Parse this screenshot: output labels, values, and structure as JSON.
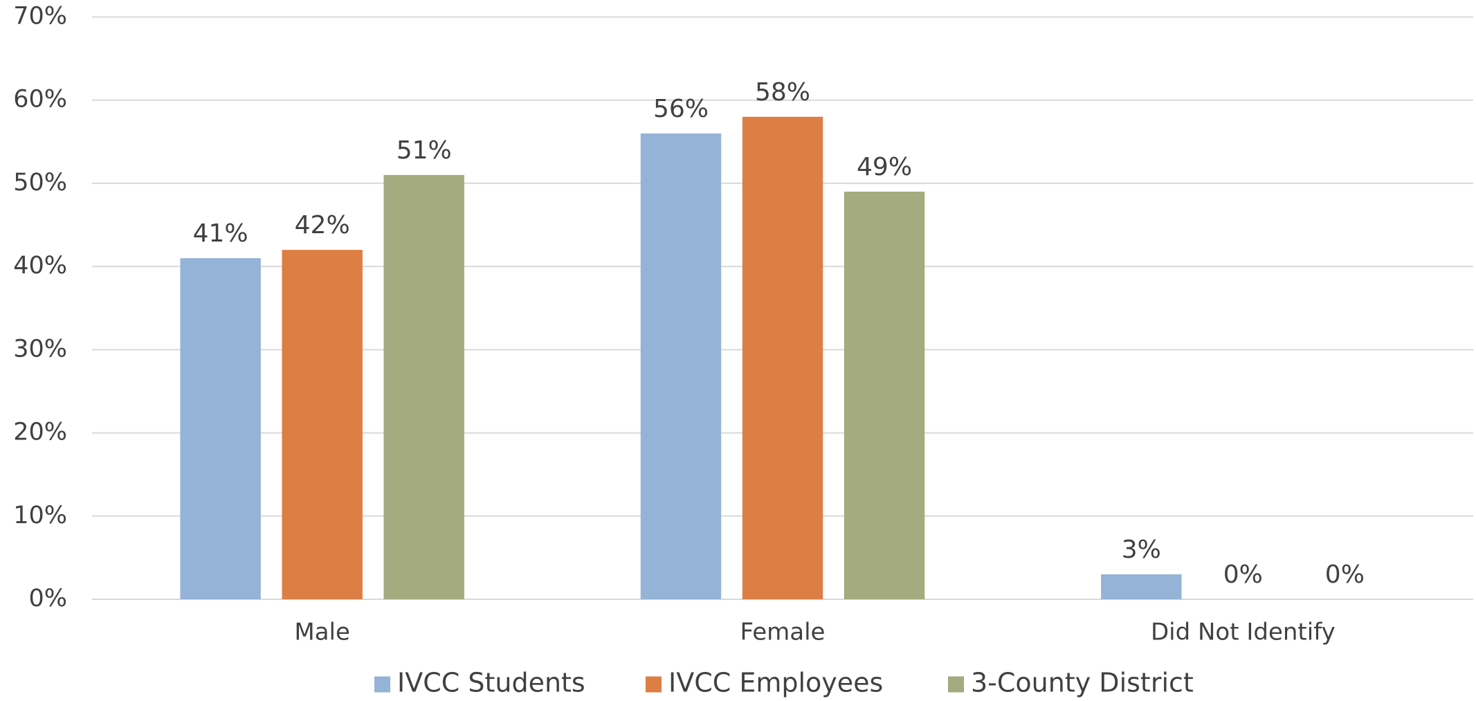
{
  "chart_data": {
    "type": "bar",
    "categories": [
      "Male",
      "Female",
      "Did Not Identify"
    ],
    "series": [
      {
        "name": "IVCC Students",
        "color": "#95b3d7",
        "values": [
          41,
          56,
          3
        ],
        "value_labels": [
          "41%",
          "56%",
          "3%"
        ]
      },
      {
        "name": "IVCC Employees",
        "color": "#dd7e45",
        "values": [
          42,
          58,
          0
        ],
        "value_labels": [
          "42%",
          "58%",
          "0%"
        ]
      },
      {
        "name": "3-County District",
        "color": "#a3ab7f",
        "values": [
          51,
          49,
          0
        ],
        "value_labels": [
          "51%",
          "49%",
          "0%"
        ]
      }
    ],
    "ylim": [
      0,
      70
    ],
    "yticks": [
      {
        "value": 0,
        "label": "0%"
      },
      {
        "value": 10,
        "label": "10%"
      },
      {
        "value": 20,
        "label": "20%"
      },
      {
        "value": 30,
        "label": "30%"
      },
      {
        "value": 40,
        "label": "40%"
      },
      {
        "value": 50,
        "label": "50%"
      },
      {
        "value": 60,
        "label": "60%"
      },
      {
        "value": 70,
        "label": "70%"
      }
    ],
    "grid": true,
    "legend": "bottom"
  }
}
